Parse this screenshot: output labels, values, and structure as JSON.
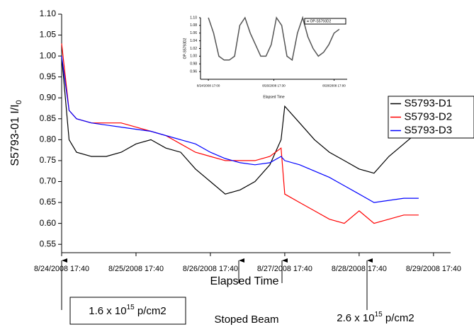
{
  "chart_data": [
    {
      "type": "line",
      "x_label": "Elapsed Time",
      "y_label": "S5793-01 I/I",
      "y_label_subscript": "0",
      "x": [
        0,
        0.1,
        0.2,
        0.4,
        0.6,
        0.8,
        1.0,
        1.2,
        1.4,
        1.6,
        1.8,
        2.0,
        2.2,
        2.4,
        2.6,
        2.8,
        2.95,
        3.0,
        3.2,
        3.4,
        3.6,
        3.8,
        4.0,
        4.2,
        4.4,
        4.6,
        4.8
      ],
      "series": [
        {
          "name": "S5793-D1",
          "color": "#000000",
          "values": [
            1.0,
            0.8,
            0.77,
            0.76,
            0.76,
            0.77,
            0.79,
            0.8,
            0.78,
            0.77,
            0.73,
            0.7,
            0.67,
            0.68,
            0.7,
            0.74,
            0.8,
            0.88,
            0.84,
            0.8,
            0.77,
            0.75,
            0.73,
            0.72,
            0.76,
            0.79,
            0.82
          ]
        },
        {
          "name": "S5793-D2",
          "color": "#ff0000",
          "values": [
            1.03,
            0.87,
            0.85,
            0.84,
            0.84,
            0.84,
            0.83,
            0.82,
            0.81,
            0.79,
            0.77,
            0.76,
            0.75,
            0.75,
            0.75,
            0.76,
            0.78,
            0.67,
            0.65,
            0.63,
            0.61,
            0.6,
            0.63,
            0.6,
            0.61,
            0.62,
            0.62
          ]
        },
        {
          "name": "S5793-D3",
          "color": "#0000ff",
          "values": [
            1.0,
            0.87,
            0.85,
            0.84,
            0.835,
            0.83,
            0.825,
            0.82,
            0.81,
            0.8,
            0.79,
            0.77,
            0.755,
            0.745,
            0.74,
            0.745,
            0.76,
            0.75,
            0.74,
            0.725,
            0.71,
            0.69,
            0.67,
            0.65,
            0.655,
            0.66,
            0.66
          ]
        }
      ],
      "xlim": [
        0,
        5.23
      ],
      "xticks": [
        {
          "value": 0,
          "label": "8/24/2008 17:40"
        },
        {
          "value": 1,
          "label": "8/25/2008 17:40"
        },
        {
          "value": 2,
          "label": "8/26/2008 17:40"
        },
        {
          "value": 3,
          "label": "8/27/2008 17:40"
        },
        {
          "value": 4,
          "label": "8/28/2008 17:40"
        },
        {
          "value": 5,
          "label": "8/29/2008 17:40"
        }
      ],
      "ylim": [
        0.53,
        1.1
      ],
      "yticks": [
        0.55,
        {
          "value": 0.6,
          "label": "0.60"
        },
        0.65,
        {
          "value": 0.7,
          "label": "0.70"
        },
        0.75,
        {
          "value": 0.8,
          "label": "0.80"
        },
        0.85,
        {
          "value": 0.9,
          "label": "0.90"
        },
        0.95,
        {
          "value": 1.0,
          "label": "1.00"
        },
        1.05,
        {
          "value": 1.1,
          "label": "1.10"
        }
      ],
      "annotations": {
        "dose_1": {
          "text": "1.6 x 10",
          "sup": "15",
          "after": " p/cm2"
        },
        "stop": "Stoped Beam",
        "dose_2": {
          "text": "2.6 x 10",
          "sup": "15",
          "after": " p/cm2"
        }
      }
    },
    {
      "type": "line",
      "x_label": "Elapsed Time",
      "y_label": "OP-S5793D2",
      "x": [
        0,
        0.2,
        0.4,
        0.6,
        0.8,
        1.0,
        1.2,
        1.4,
        1.6,
        1.8,
        2.0,
        2.2,
        2.4,
        2.6,
        2.8,
        3.0,
        3.2,
        3.4,
        3.6,
        3.8,
        4.0,
        4.2,
        4.4,
        4.6,
        4.8,
        5.0
      ],
      "series": [
        {
          "name": "OP-S5793D2",
          "color": "#555555",
          "values": [
            1.1,
            1.06,
            1.0,
            0.99,
            0.99,
            1.0,
            1.08,
            1.1,
            1.06,
            1.03,
            1.0,
            1.0,
            1.03,
            1.1,
            1.08,
            1.0,
            0.99,
            1.06,
            1.1,
            1.05,
            1.02,
            1.0,
            1.01,
            1.03,
            1.06,
            1.07
          ]
        }
      ],
      "xlim": [
        -0.3,
        5.3
      ],
      "xticks": [
        {
          "value": 0,
          "label": "8/24/2008 17:00"
        },
        {
          "value": 2.5,
          "label": "8/26/2008 17:30"
        },
        {
          "value": 4.8,
          "label": "8/28/2008 17:00"
        }
      ],
      "ylim": [
        0.94,
        1.1
      ],
      "yticks": [
        0.96,
        0.98,
        {
          "value": 1.0,
          "label": "1.00"
        },
        1.02,
        1.04,
        1.06,
        1.08,
        {
          "value": 1.1,
          "label": "1.10"
        }
      ]
    }
  ]
}
